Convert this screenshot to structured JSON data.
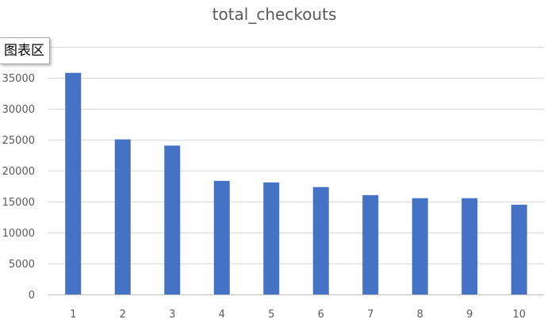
{
  "tooltip": {
    "text": "图表区"
  },
  "chart_data": {
    "type": "bar",
    "title": "total_checkouts",
    "xlabel": "",
    "ylabel": "",
    "categories": [
      "1",
      "2",
      "3",
      "4",
      "5",
      "6",
      "7",
      "8",
      "9",
      "10"
    ],
    "values": [
      35800,
      25050,
      24050,
      18350,
      18100,
      17350,
      16050,
      15550,
      15550,
      14500
    ],
    "ylim": [
      0,
      40000
    ],
    "yticks": [
      0,
      5000,
      10000,
      15000,
      20000,
      25000,
      30000,
      35000,
      40000
    ],
    "grid": true,
    "legend": "none",
    "bar_color": "#4472c4"
  }
}
